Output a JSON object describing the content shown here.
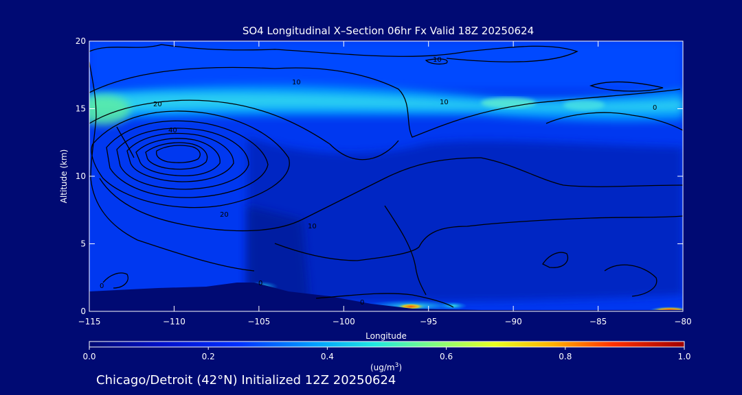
{
  "chart_data": {
    "type": "heatmap",
    "title": "SO4 Longitudinal X–Section 06hr  Fx Valid 18Z 20250624",
    "xlabel": "Longitude",
    "ylabel": "Altitude (km)",
    "xlim": [
      -115,
      -80
    ],
    "ylim": [
      0,
      20
    ],
    "x_ticks": [
      "−115",
      "−110",
      "−105",
      "−100",
      "−95",
      "−90",
      "−85",
      "−80"
    ],
    "y_ticks": [
      "0",
      "5",
      "10",
      "15",
      "20"
    ],
    "colorbar": {
      "min": 0.0,
      "max": 1.0,
      "ticks": [
        "0.0",
        "0.2",
        "0.4",
        "0.6",
        "0.8",
        "1.0"
      ],
      "unit_label": "(ug/m",
      "unit_sup": "3",
      "unit_close": ")"
    },
    "contour_labels": [
      "10",
      "20",
      "40",
      "10",
      "10",
      "0",
      "20",
      "10",
      "0",
      "0",
      "0"
    ],
    "fill_regions": [
      {
        "lon_min": -115,
        "lon_max": -80,
        "alt_min": 15.0,
        "alt_max": 15.8,
        "value": 0.33
      },
      {
        "lon_min": -115,
        "lon_max": -112,
        "alt_min": 13.5,
        "alt_max": 15.5,
        "value": 0.42
      },
      {
        "lon_min": -95,
        "lon_max": -96,
        "alt_min": 0.2,
        "alt_max": 0.6,
        "value": 0.7
      },
      {
        "lon_min": -97,
        "lon_max": -94,
        "alt_min": 0.3,
        "alt_max": 0.8,
        "value": 0.35
      }
    ]
  },
  "footer": "Chicago/Detroit (42°N) Initialized 12Z 20250624"
}
